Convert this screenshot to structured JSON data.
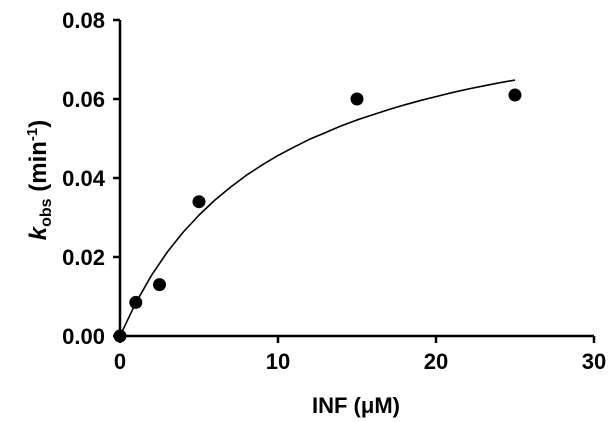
{
  "chart_data": {
    "type": "scatter",
    "xlabel": "INF (μM)",
    "ylabel": {
      "k": "k",
      "sub": "obs",
      "mid": " (min",
      "sup": "-1",
      "end": ")"
    },
    "xlim": [
      0,
      30
    ],
    "ylim": [
      0,
      0.08
    ],
    "xticks": [
      "0",
      "10",
      "20",
      "30"
    ],
    "yticks": [
      "0.00",
      "0.02",
      "0.04",
      "0.06",
      "0.08"
    ],
    "grid": false,
    "legend": "none",
    "points": {
      "x": [
        0,
        1,
        2.5,
        5,
        15,
        25
      ],
      "y": [
        0.0,
        0.0085,
        0.013,
        0.034,
        0.06,
        0.061
      ]
    },
    "fit_curve": {
      "x": [
        0,
        1,
        2,
        3,
        4,
        5,
        6,
        7,
        8,
        9,
        10,
        11,
        12,
        13,
        14,
        15,
        16,
        17,
        18,
        19,
        20,
        21,
        22,
        23,
        24,
        25
      ],
      "y": [
        0,
        0.0084,
        0.0154,
        0.0213,
        0.0263,
        0.0306,
        0.0344,
        0.0377,
        0.0407,
        0.0433,
        0.0457,
        0.0478,
        0.0498,
        0.0515,
        0.0532,
        0.0547,
        0.056,
        0.0573,
        0.0585,
        0.0596,
        0.0606,
        0.0616,
        0.0625,
        0.0633,
        0.0641,
        0.0648
      ]
    },
    "colors": {
      "points": "#000000",
      "curve": "#000000",
      "axes": "#000000"
    }
  }
}
